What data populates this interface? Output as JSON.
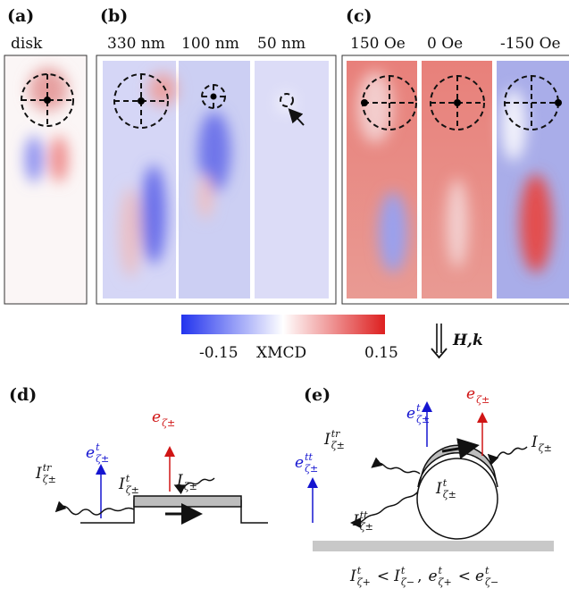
{
  "panels": {
    "a": {
      "label": "(a)",
      "caption": "disk"
    },
    "b": {
      "label": "(b)",
      "captions": [
        "330 nm",
        "100 nm",
        "50 nm"
      ]
    },
    "c": {
      "label": "(c)",
      "captions": [
        "150 Oe",
        "0 Oe",
        "-150 Oe"
      ]
    },
    "d": {
      "label": "(d)",
      "symbols": [
        {
          "base": "I",
          "sup": "tr",
          "sub": "ζ±"
        },
        {
          "base": "e",
          "sup": "t",
          "sub": "ζ±"
        },
        {
          "base": "e",
          "sub": "ζ±"
        },
        {
          "base": "I",
          "sup": "t",
          "sub": "ζ±"
        },
        {
          "base": "I",
          "sub": "ζ±"
        }
      ]
    },
    "e": {
      "label": "(e)",
      "symbols": [
        {
          "base": "e",
          "sup": "tt",
          "sub": "ζ±"
        },
        {
          "base": "I",
          "sup": "tr",
          "sub": "ζ±"
        },
        {
          "base": "e",
          "sup": "t",
          "sub": "ζ±"
        },
        {
          "base": "e",
          "sub": "ζ±"
        },
        {
          "base": "I",
          "sub": "ζ±"
        },
        {
          "base": "I",
          "sup": "t",
          "sub": "ζ±"
        },
        {
          "base": "I",
          "sup": "tt",
          "sub": "ζ±"
        }
      ],
      "formula": [
        {
          "base": "I",
          "sup": "t",
          "sub": "ζ+"
        },
        {
          "text": "<"
        },
        {
          "base": "I",
          "sup": "t",
          "sub": "ζ−"
        },
        {
          "text": ","
        },
        {
          "base": "e",
          "sup": "t",
          "sub": "ζ+"
        },
        {
          "text": "<"
        },
        {
          "base": "e",
          "sup": "t",
          "sub": "ζ−"
        }
      ]
    }
  },
  "colorbar": {
    "min_label": "-0.15",
    "label": "XMCD",
    "max_label": "0.15"
  },
  "field_label": "H,k"
}
